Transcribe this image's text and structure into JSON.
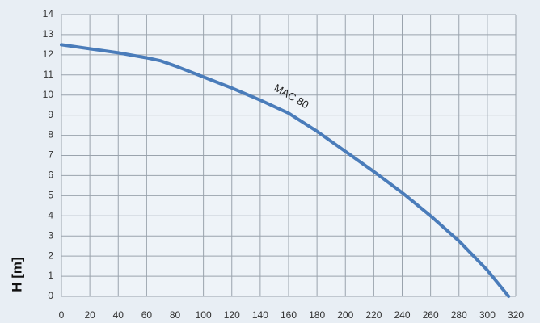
{
  "chart_data": {
    "type": "line",
    "y_label": "H [m]",
    "annotation": "MAC 80",
    "series": [
      {
        "name": "MAC 80",
        "color": "#4a7cba",
        "x": [
          0,
          20,
          40,
          60,
          70,
          80,
          100,
          120,
          140,
          160,
          180,
          200,
          220,
          240,
          260,
          280,
          300,
          315
        ],
        "values": [
          12.5,
          12.3,
          12.1,
          11.85,
          11.7,
          11.45,
          10.9,
          10.35,
          9.75,
          9.1,
          8.2,
          7.2,
          6.2,
          5.15,
          4.0,
          2.75,
          1.3,
          0
        ]
      }
    ],
    "xlim": [
      0,
      320
    ],
    "xticks": [
      0,
      20,
      40,
      60,
      80,
      100,
      120,
      140,
      160,
      180,
      200,
      220,
      240,
      260,
      280,
      300,
      320
    ],
    "ylim": [
      0,
      14
    ],
    "yticks": [
      0,
      1,
      2,
      3,
      4,
      5,
      6,
      7,
      8,
      9,
      10,
      11,
      12,
      13,
      14
    ],
    "grid": true
  }
}
